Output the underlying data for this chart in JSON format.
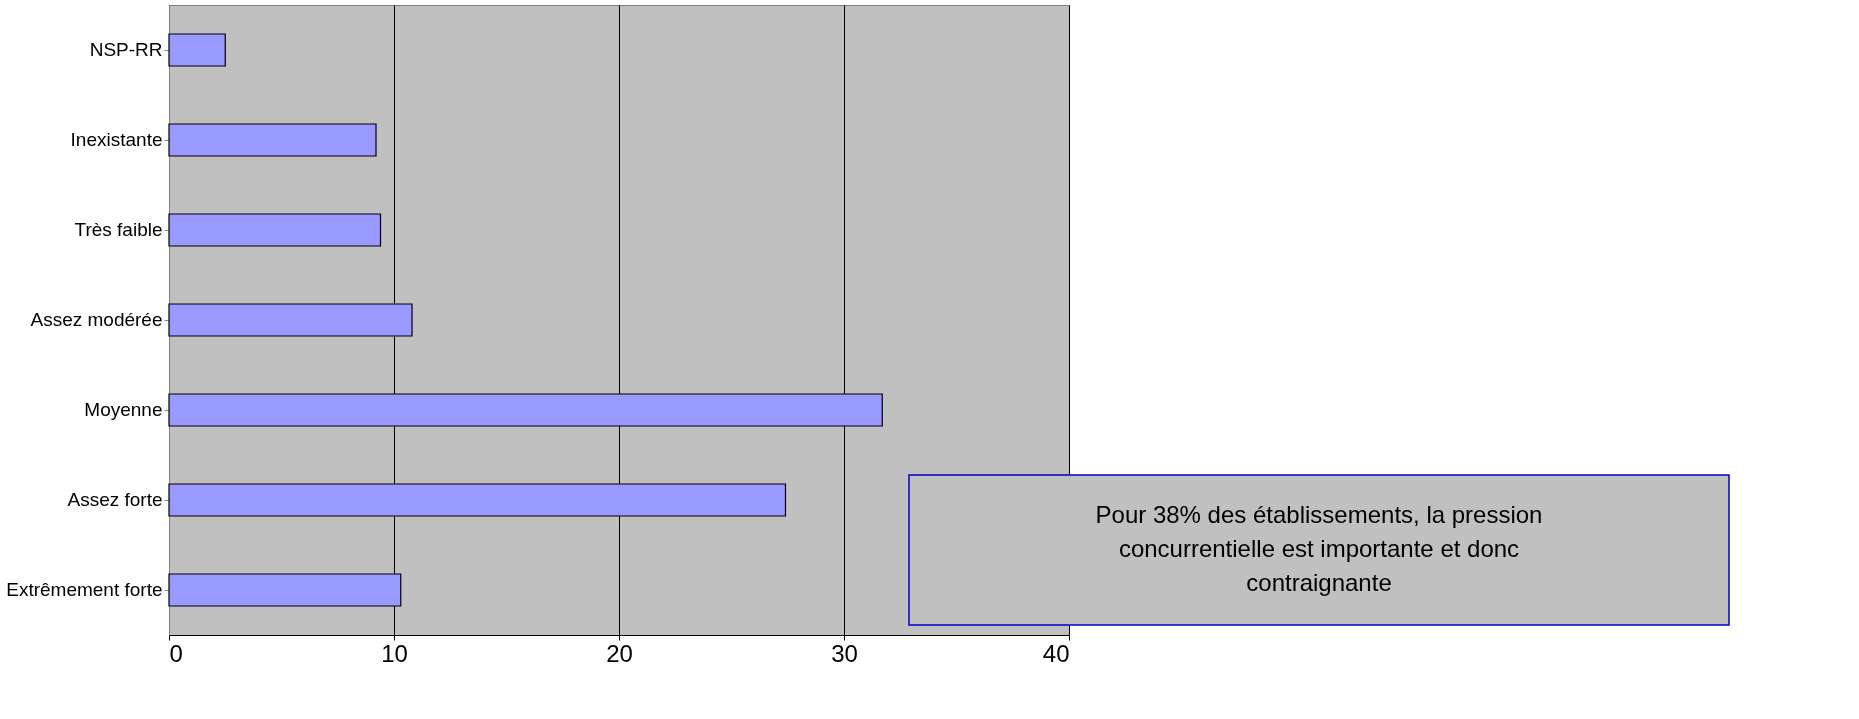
{
  "chart_data": {
    "type": "bar",
    "orientation": "horizontal",
    "categories": [
      "NSP-RR",
      "Inexistante",
      "Très faible",
      "Assez modérée",
      "Moyenne",
      "Assez forte",
      "Extrêmement forte"
    ],
    "values": [
      2.5,
      9.2,
      9.4,
      10.8,
      31.7,
      27.4,
      10.3
    ],
    "color": "#9999ff",
    "xlim": [
      0,
      40
    ],
    "xticks": [
      0,
      10,
      20,
      30,
      40
    ],
    "grid": "x",
    "annotations": [
      "Pour 38% des établissements, la pression concurrentielle est importante et donc contraignante"
    ]
  }
}
